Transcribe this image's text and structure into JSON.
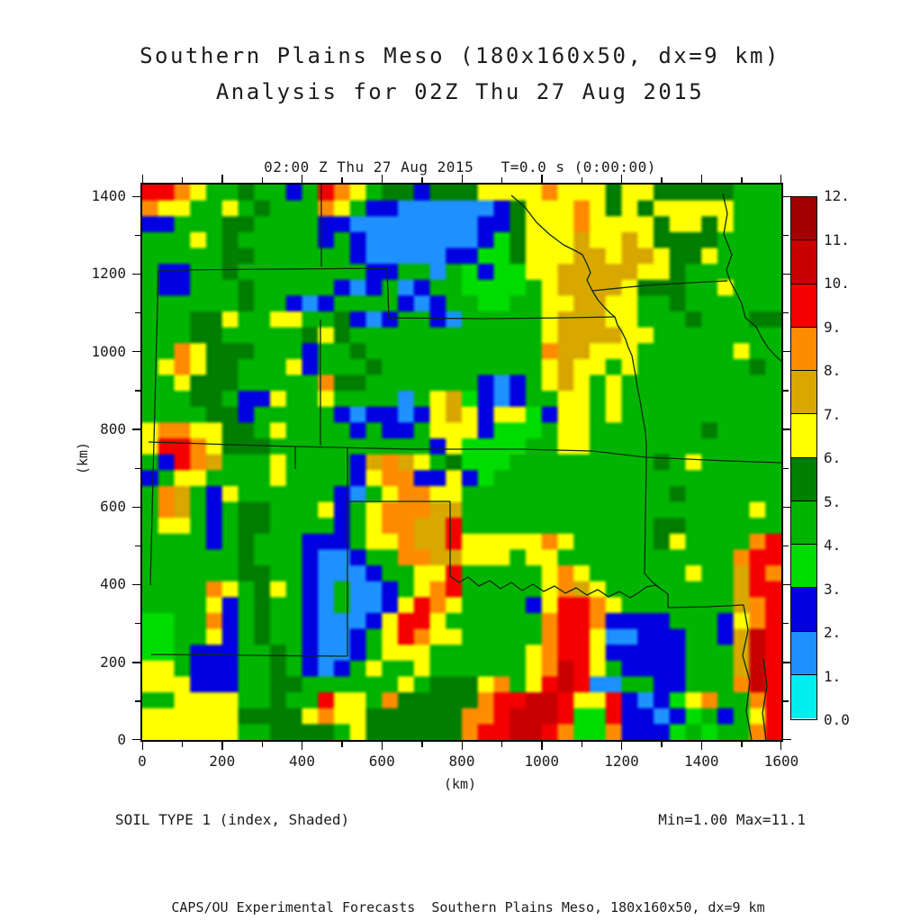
{
  "header": {
    "title_line1": "Southern Plains Meso (180x160x50, dx=9 km)",
    "title_line2": "Analysis for 02Z Thu 27 Aug 2015"
  },
  "plot": {
    "timestamp": "02:00 Z Thu 27 Aug 2015   T=0.0 s (0:00:00)",
    "field_label": "SOIL TYPE 1 (index, Shaded)",
    "stats": "Min=1.00 Max=11.1",
    "x_axis": {
      "unit": "(km)",
      "min": 0,
      "max": 1600,
      "major_step": 200,
      "minor_step": 100,
      "tick_labels": [
        "0",
        "200",
        "400",
        "600",
        "800",
        "1000",
        "1200",
        "1400",
        "1600"
      ]
    },
    "y_axis": {
      "unit": "(km)",
      "min": 0,
      "max": 1400,
      "major_step": 200,
      "minor_step": 100,
      "tick_labels": [
        "0",
        "200",
        "400",
        "600",
        "800",
        "1000",
        "1200",
        "1400"
      ]
    }
  },
  "colorbar": {
    "labels_top_to_bottom": [
      "12.",
      "11.",
      "10.",
      "9.",
      "8.",
      "7.",
      "6.",
      "5.",
      "4.",
      "3.",
      "2.",
      "1.",
      "0.0"
    ],
    "colors_bottom_to_top": [
      "#00EEEE",
      "#1E90FF",
      "#0000E0",
      "#00DC00",
      "#00B400",
      "#007F00",
      "#FFFF00",
      "#D8A800",
      "#FF8C00",
      "#F40000",
      "#C80000",
      "#A00000"
    ]
  },
  "caption": "CAPS/OU Experimental Forecasts  Southern Plains Meso, 180x160x50, dx=9 km",
  "chart_data": {
    "type": "heatmap",
    "title": "SOIL TYPE 1 (index, Shaded)",
    "xlabel": "(km)",
    "ylabel": "(km)",
    "x_range_km": [
      0,
      1600
    ],
    "y_range_km": [
      0,
      1440
    ],
    "value_range": [
      0,
      12
    ],
    "min_value": 1.0,
    "max_value": 11.1,
    "palette": {
      "c": "#00EEEE",
      "b": "#1E90FF",
      "B": "#0000E0",
      "g": "#00DC00",
      "G": "#00B400",
      "D": "#007F00",
      "y": "#FFFF00",
      "d": "#D8A800",
      "o": "#FF8C00",
      "r": "#F40000",
      "R": "#C80000",
      "M": "#A00000"
    },
    "levels": {
      "c": [
        0,
        1
      ],
      "b": [
        1,
        2
      ],
      "B": [
        2,
        3
      ],
      "g": [
        3,
        4
      ],
      "G": [
        4,
        5
      ],
      "D": [
        5,
        6
      ],
      "y": [
        6,
        7
      ],
      "d": [
        7,
        8
      ],
      "o": [
        8,
        9
      ],
      "r": [
        9,
        10
      ],
      "R": [
        10,
        11
      ],
      "M": [
        11,
        12
      ]
    },
    "grid_cols": 40,
    "grid_rows": 35,
    "grid": [
      "rroyGGDGGBGroyGDDBDDDyyyyoyyyDyyDDDDDGGG",
      "oyyGGyGDGGGoyGBBbbbbbbBDyyyoyDyDyyyyyGGG",
      "BBGGGDDGGGGBBbbbbbbbbBBDyyyoyyyyDyyDyGGG",
      "GGGyGDGGGGGBGBbbbbbbbBgDyyydyydyDDDDGGGG",
      "GGGGGDDGGGGGGBbbbbbBBggDyyyddyddyDDyGGGG",
      "GBBGGDGGGGGGGGBBGGbGgBggyydddddyyDGGGGGG",
      "GBBGGGDGGGGGBbBGbBGGggggGyddddyDDDGGyGGG",
      "GGGGGGDGGBbBGGGGBbBGGggGGyyddyyGGDGGGGGG",
      "GGGDDyGGyyGGDBbBGGBbGGGGGydddyyGGGDGGGDD",
      "GGGDDGGGGGDyDGGGGGGGGGGGGyddddyyGGGGGGGG",
      "GGoyDDDGGGBGGDGGGGGGGGGGGoddyyyGGGGGGyGG",
      "GyoyDDGGGyBGGGDGGGGGGGGGGydyyGyGGGGGGGDG",
      "GGyDDDGGGGGoDDGGGGGGGBbBGydyGyGGGGGGGGGG",
      "GGGDDGBByGGyGGGGbGydgBbBGGyyGyGGGGGGGGGG",
      "GGGGDDBGGGGGBbBBbBydyByygByyGyGGGGGGGGGG",
      "yooyyDDGyGGGGBGBBGyyyBgggGyyGGGGGGGDGGGG",
      "yrroyDDDGGGGGGGGGGByggggGGyyGGGGGGGGGGGG",
      "GBrodGGGyGGGGBdodyGDgggGGGGGGGGGDGyGGGGG",
      "BGyyGGGGyGGGGByooBByBgGGGGGGGGGGGGGGGGGG",
      "GodGByGGGGGGBbGyooyyGGGGGGGGGGGGGDGGGGGG",
      "GodGBGDDGGGyBGyoooddGGGGGGGGGGGGGGGGGGyG",
      "GyyGBGDDGGGGBGyooddrGGGGGGGGGGGGDDGGGGGG",
      "GGGGBGDGGGBBBGyyoddryyyyyoyGGGGGDyGGGGor",
      "GGGGGGDGGGBbbBGGooddyyyGyyGGGGGGGGGGGorr",
      "GGGGGGDDGGBbbbBGGyyrGGGGGyoyGGGGGGyGGdro",
      "GGGGoyGDyGBbGbbBGyorGGGGGyodyGGGGGGGGdrr",
      "GGGGyBGDGGBbGbbByroyGGGGByrroyGGGGGGGdor",
      "ggGGoBGDGGBbbbByrryGGGGGGorroBBBBGGGByor",
      "ggGGyBGDGGBbbBGyroyyGGGGGorrybbBBBGGBdRr",
      "ggGBBBGGDGBbbBGyyyGGGGGGyorryBBBBBGGGdRr",
      "yyGBBBGGDGBbBGyGGyGGGGGGyoRryGBBBBGGGdRr",
      "yyyBBBGGDDGGGGGGyGDDDyoGyrRrbbGGBBGGGoRr",
      "GGyyyyGGDGGryyGoDDDDDorrRRryyrBbBgyoGGor",
      "yyyyyyDDDDyoyyDDDDDDoorRRRrggrBBbBgGBGyr",
      "yyyyyyGGDDDDGyDDDDDDorrRRroggoBBBgGgGGor"
    ],
    "state_borders": [
      [
        [
          18,
          95
        ],
        [
          150,
          94
        ],
        [
          272,
          93
        ]
      ],
      [
        [
          18,
          95
        ],
        [
          13,
          285
        ],
        [
          9,
          445
        ]
      ],
      [
        [
          272,
          93
        ],
        [
          274,
          148
        ]
      ],
      [
        [
          274,
          148
        ],
        [
          380,
          149
        ],
        [
          470,
          148
        ],
        [
          525,
          147
        ]
      ],
      [
        [
          199,
          0
        ],
        [
          199,
          91
        ]
      ],
      [
        [
          198,
          150
        ],
        [
          198,
          290
        ]
      ],
      [
        [
          7,
          286
        ],
        [
          100,
          289
        ],
        [
          170,
          291
        ],
        [
          300,
          294
        ],
        [
          420,
          294
        ],
        [
          500,
          296
        ],
        [
          560,
          303
        ],
        [
          650,
          307
        ],
        [
          710,
          309
        ]
      ],
      [
        [
          170,
          291
        ],
        [
          170,
          316
        ]
      ],
      [
        [
          410,
          12
        ],
        [
          425,
          25
        ],
        [
          438,
          42
        ],
        [
          452,
          55
        ],
        [
          468,
          67
        ],
        [
          482,
          74
        ],
        [
          489,
          78
        ],
        [
          494,
          88
        ],
        [
          498,
          98
        ],
        [
          494,
          106
        ],
        [
          500,
          118
        ],
        [
          506,
          128
        ],
        [
          513,
          136
        ],
        [
          520,
          143
        ],
        [
          525,
          147
        ],
        [
          528,
          156
        ],
        [
          533,
          164
        ],
        [
          537,
          172
        ],
        [
          540,
          181
        ],
        [
          544,
          190
        ],
        [
          546,
          201
        ],
        [
          548,
          212
        ],
        [
          550,
          225
        ],
        [
          553,
          240
        ],
        [
          556,
          258
        ],
        [
          559,
          275
        ],
        [
          560,
          290
        ],
        [
          560,
          305
        ]
      ],
      [
        [
          500,
          118
        ],
        [
          560,
          112
        ],
        [
          610,
          109
        ],
        [
          650,
          107
        ]
      ],
      [
        [
          645,
          10
        ],
        [
          650,
          32
        ],
        [
          646,
          55
        ],
        [
          655,
          78
        ],
        [
          649,
          95
        ],
        [
          653,
          107
        ],
        [
          660,
          120
        ],
        [
          666,
          132
        ],
        [
          670,
          148
        ],
        [
          682,
          158
        ],
        [
          688,
          170
        ],
        [
          695,
          181
        ],
        [
          703,
          190
        ],
        [
          710,
          196
        ]
      ],
      [
        [
          560,
          305
        ],
        [
          559,
          370
        ],
        [
          558,
          432
        ]
      ],
      [
        [
          558,
          432
        ],
        [
          566,
          441
        ],
        [
          576,
          449
        ],
        [
          584,
          455
        ],
        [
          584,
          470
        ]
      ],
      [
        [
          342,
          435
        ],
        [
          352,
          442
        ],
        [
          362,
          436
        ],
        [
          374,
          446
        ],
        [
          386,
          440
        ],
        [
          398,
          449
        ],
        [
          410,
          442
        ],
        [
          422,
          451
        ],
        [
          434,
          444
        ],
        [
          446,
          452
        ],
        [
          458,
          446
        ],
        [
          470,
          454
        ],
        [
          482,
          448
        ],
        [
          494,
          456
        ],
        [
          506,
          450
        ],
        [
          518,
          458
        ],
        [
          530,
          452
        ],
        [
          542,
          459
        ],
        [
          552,
          453
        ],
        [
          560,
          447
        ],
        [
          570,
          445
        ],
        [
          576,
          449
        ]
      ],
      [
        [
          228,
          352
        ],
        [
          285,
          352
        ],
        [
          342,
          352
        ]
      ],
      [
        [
          342,
          352
        ],
        [
          342,
          435
        ]
      ],
      [
        [
          228,
          292
        ],
        [
          228,
          524
        ]
      ],
      [
        [
          10,
          522
        ],
        [
          120,
          523
        ],
        [
          228,
          524
        ]
      ],
      [
        [
          584,
          470
        ],
        [
          630,
          469
        ],
        [
          668,
          467
        ]
      ],
      [
        [
          668,
          467
        ],
        [
          673,
          495
        ],
        [
          667,
          523
        ],
        [
          675,
          552
        ],
        [
          671,
          585
        ],
        [
          677,
          617
        ]
      ],
      [
        [
          690,
          527
        ],
        [
          694,
          557
        ],
        [
          689,
          587
        ],
        [
          693,
          617
        ]
      ]
    ]
  }
}
